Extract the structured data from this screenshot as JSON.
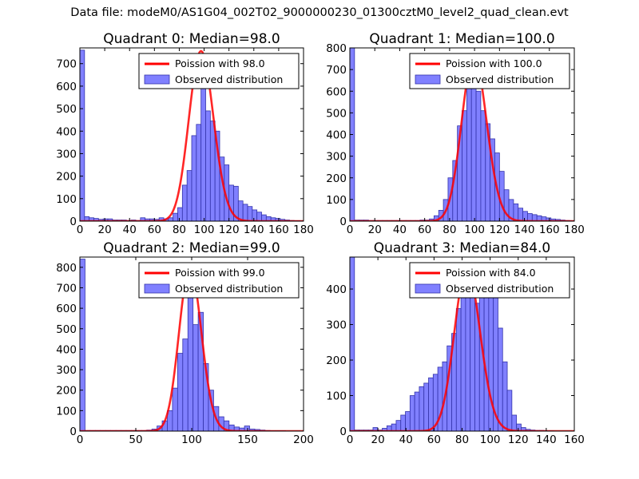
{
  "figure": {
    "suptitle": "Data file: modeM0/AS1G04_002T02_9000000230_01300cztM0_level2_quad_clean.evt"
  },
  "colors": {
    "hist_fill": "#8080ff",
    "hist_edge": "#3333aa",
    "poisson_line": "#ff0000"
  },
  "chart_data": [
    {
      "type": "bar",
      "title": "Quadrant 0: Median=98.0",
      "xlim": [
        0,
        180
      ],
      "ylim": [
        0,
        770
      ],
      "xticks": [
        0,
        20,
        40,
        60,
        80,
        100,
        120,
        140,
        160,
        180
      ],
      "yticks": [
        0,
        100,
        200,
        300,
        400,
        500,
        600,
        700
      ],
      "legend": {
        "placement": "top-right",
        "line_label": "Poission with 98.0",
        "hist_label": "Observed distribution"
      },
      "bin_width": 3.75,
      "bins": [
        [
          0,
          760
        ],
        [
          3.75,
          20
        ],
        [
          7.5,
          15
        ],
        [
          11.25,
          12
        ],
        [
          15,
          8
        ],
        [
          18.75,
          10
        ],
        [
          22.5,
          10
        ],
        [
          26.25,
          5
        ],
        [
          30,
          5
        ],
        [
          33.75,
          5
        ],
        [
          37.5,
          3
        ],
        [
          41.25,
          5
        ],
        [
          45,
          3
        ],
        [
          48.75,
          15
        ],
        [
          52.5,
          10
        ],
        [
          56.25,
          10
        ],
        [
          60,
          8
        ],
        [
          63.75,
          15
        ],
        [
          67.5,
          10
        ],
        [
          71.25,
          15
        ],
        [
          75,
          35
        ],
        [
          78.75,
          60
        ],
        [
          82.5,
          160
        ],
        [
          86.25,
          225
        ],
        [
          90,
          380
        ],
        [
          93.75,
          430
        ],
        [
          97.5,
          600
        ],
        [
          101.25,
          490
        ],
        [
          105,
          445
        ],
        [
          108.75,
          400
        ],
        [
          112.5,
          285
        ],
        [
          116.25,
          250
        ],
        [
          120,
          160
        ],
        [
          123.75,
          155
        ],
        [
          127.5,
          90
        ],
        [
          131.25,
          75
        ],
        [
          135,
          65
        ],
        [
          138.75,
          50
        ],
        [
          142.5,
          40
        ],
        [
          146.25,
          28
        ],
        [
          150,
          20
        ],
        [
          153.75,
          15
        ],
        [
          157.5,
          12
        ],
        [
          161.25,
          8
        ],
        [
          165,
          5
        ],
        [
          168.75,
          3
        ],
        [
          172.5,
          2
        ],
        [
          176.25,
          2
        ]
      ],
      "poisson_mean": 98.0,
      "poisson_scale": 755
    },
    {
      "type": "bar",
      "title": "Quadrant 1: Median=100.0",
      "xlim": [
        0,
        180
      ],
      "ylim": [
        0,
        800
      ],
      "xticks": [
        0,
        20,
        40,
        60,
        80,
        100,
        120,
        140,
        160,
        180
      ],
      "yticks": [
        0,
        100,
        200,
        300,
        400,
        500,
        600,
        700,
        800
      ],
      "legend": {
        "placement": "top-right",
        "line_label": "Poission with 100.0",
        "hist_label": "Observed distribution"
      },
      "bin_width": 3.75,
      "bins": [
        [
          0,
          800
        ],
        [
          3.75,
          5
        ],
        [
          7.5,
          5
        ],
        [
          11.25,
          5
        ],
        [
          15,
          3
        ],
        [
          18.75,
          3
        ],
        [
          22.5,
          3
        ],
        [
          26.25,
          3
        ],
        [
          30,
          3
        ],
        [
          33.75,
          3
        ],
        [
          37.5,
          3
        ],
        [
          41.25,
          3
        ],
        [
          45,
          3
        ],
        [
          48.75,
          3
        ],
        [
          52.5,
          3
        ],
        [
          56.25,
          5
        ],
        [
          60,
          5
        ],
        [
          63.75,
          10
        ],
        [
          67.5,
          25
        ],
        [
          71.25,
          50
        ],
        [
          75,
          100
        ],
        [
          78.75,
          200
        ],
        [
          82.5,
          280
        ],
        [
          86.25,
          440
        ],
        [
          90,
          510
        ],
        [
          93.75,
          660
        ],
        [
          97.5,
          760
        ],
        [
          101.25,
          600
        ],
        [
          105,
          510
        ],
        [
          108.75,
          450
        ],
        [
          112.5,
          380
        ],
        [
          116.25,
          315
        ],
        [
          120,
          230
        ],
        [
          123.75,
          145
        ],
        [
          127.5,
          100
        ],
        [
          131.25,
          80
        ],
        [
          135,
          60
        ],
        [
          138.75,
          45
        ],
        [
          142.5,
          35
        ],
        [
          146.25,
          30
        ],
        [
          150,
          25
        ],
        [
          153.75,
          20
        ],
        [
          157.5,
          15
        ],
        [
          161.25,
          10
        ],
        [
          165,
          8
        ],
        [
          168.75,
          5
        ],
        [
          172.5,
          3
        ],
        [
          176.25,
          2
        ]
      ],
      "poisson_mean": 100.0,
      "poisson_scale": 760
    },
    {
      "type": "bar",
      "title": "Quadrant 2: Median=99.0",
      "xlim": [
        0,
        200
      ],
      "ylim": [
        0,
        850
      ],
      "xticks": [
        0,
        50,
        100,
        150,
        200
      ],
      "yticks": [
        0,
        100,
        200,
        300,
        400,
        500,
        600,
        700,
        800
      ],
      "legend": {
        "placement": "top-right",
        "line_label": "Poission with 99.0",
        "hist_label": "Observed distribution"
      },
      "bin_width": 4.6,
      "bins": [
        [
          0,
          840
        ],
        [
          4.6,
          3
        ],
        [
          9.2,
          3
        ],
        [
          13.8,
          3
        ],
        [
          18.4,
          3
        ],
        [
          23,
          3
        ],
        [
          27.6,
          3
        ],
        [
          32.2,
          3
        ],
        [
          36.8,
          3
        ],
        [
          41.4,
          3
        ],
        [
          46,
          3
        ],
        [
          50.6,
          3
        ],
        [
          55.2,
          3
        ],
        [
          59.8,
          5
        ],
        [
          64.4,
          10
        ],
        [
          69,
          25
        ],
        [
          73.6,
          50
        ],
        [
          78.2,
          100
        ],
        [
          82.8,
          210
        ],
        [
          87.4,
          380
        ],
        [
          92,
          450
        ],
        [
          96.6,
          700
        ],
        [
          101.2,
          520
        ],
        [
          105.8,
          580
        ],
        [
          110.4,
          330
        ],
        [
          115,
          200
        ],
        [
          119.6,
          120
        ],
        [
          124.2,
          70
        ],
        [
          128.8,
          50
        ],
        [
          133.4,
          30
        ],
        [
          138,
          20
        ],
        [
          142.6,
          15
        ],
        [
          147.2,
          25
        ],
        [
          151.8,
          10
        ],
        [
          156.4,
          8
        ],
        [
          161,
          5
        ],
        [
          165.6,
          3
        ],
        [
          170.2,
          2
        ],
        [
          174.8,
          2
        ],
        [
          179.4,
          2
        ],
        [
          184,
          0
        ]
      ],
      "poisson_mean": 99.0,
      "poisson_scale": 800
    },
    {
      "type": "bar",
      "title": "Quadrant 3: Median=84.0",
      "xlim": [
        0,
        160
      ],
      "ylim": [
        0,
        490
      ],
      "xticks": [
        0,
        20,
        40,
        60,
        80,
        100,
        120,
        140,
        160
      ],
      "yticks": [
        0,
        100,
        200,
        300,
        400
      ],
      "legend": {
        "placement": "top-right",
        "line_label": "Poission with 84.0",
        "hist_label": "Observed distribution"
      },
      "bin_width": 3.3,
      "bins": [
        [
          0,
          490
        ],
        [
          3.3,
          3
        ],
        [
          6.6,
          3
        ],
        [
          9.9,
          3
        ],
        [
          13.2,
          3
        ],
        [
          16.5,
          10
        ],
        [
          19.8,
          3
        ],
        [
          23.1,
          8
        ],
        [
          26.4,
          15
        ],
        [
          29.7,
          20
        ],
        [
          33,
          30
        ],
        [
          36.3,
          45
        ],
        [
          39.6,
          55
        ],
        [
          42.9,
          100
        ],
        [
          46.2,
          110
        ],
        [
          49.5,
          125
        ],
        [
          52.8,
          135
        ],
        [
          56.1,
          150
        ],
        [
          59.4,
          160
        ],
        [
          62.7,
          180
        ],
        [
          66,
          195
        ],
        [
          69.3,
          240
        ],
        [
          72.6,
          275
        ],
        [
          75.9,
          345
        ],
        [
          79.2,
          380
        ],
        [
          82.5,
          395
        ],
        [
          85.8,
          470
        ],
        [
          89.1,
          360
        ],
        [
          92.4,
          425
        ],
        [
          95.7,
          435
        ],
        [
          99,
          385
        ],
        [
          102.3,
          375
        ],
        [
          105.6,
          290
        ],
        [
          108.9,
          195
        ],
        [
          112.2,
          115
        ],
        [
          115.5,
          45
        ],
        [
          118.8,
          20
        ],
        [
          122.1,
          10
        ],
        [
          125.4,
          5
        ],
        [
          128.7,
          3
        ],
        [
          132,
          2
        ],
        [
          135.3,
          2
        ],
        [
          138.6,
          1
        ],
        [
          141.9,
          1
        ],
        [
          145.2,
          0
        ]
      ],
      "poisson_mean": 84.0,
      "poisson_scale": 460
    }
  ]
}
